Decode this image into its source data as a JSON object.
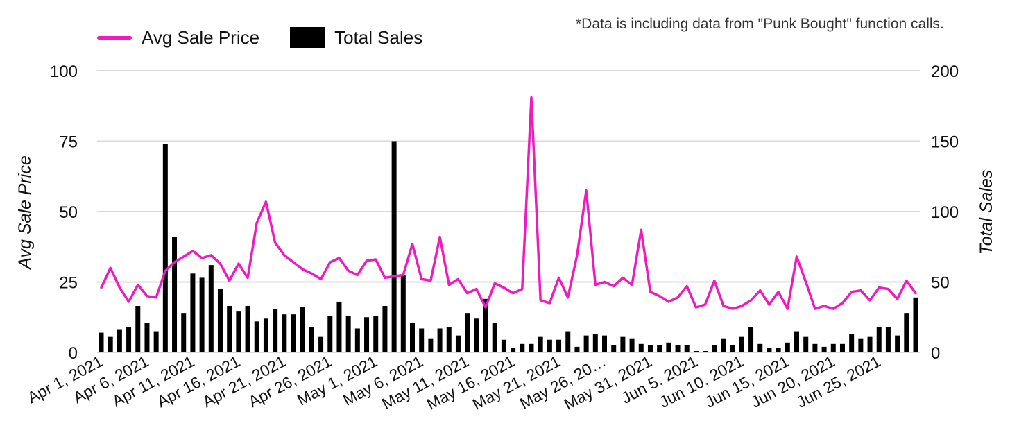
{
  "note": "*Data is including data from \"Punk Bought\" function calls.",
  "colors": {
    "price": "#f01bbe",
    "sales": "#000000",
    "grid": "#d9d9d9"
  },
  "chart_data": {
    "type": "bar+line",
    "title": "",
    "ylabel_left": "Avg Sale Price",
    "ylabel_right": "Total Sales",
    "ylim_left": [
      0,
      100
    ],
    "ylim_right": [
      0,
      200
    ],
    "yticks_left": [
      "0",
      "25",
      "50",
      "75",
      "100"
    ],
    "yticks_right": [
      "0",
      "50",
      "100",
      "150",
      "200"
    ],
    "grid": true,
    "legend_position": "top-left",
    "x_tick_labels": [
      "Apr 1, 2021",
      "Apr 6, 2021",
      "Apr 11, 2021",
      "Apr 16, 2021",
      "Apr 21, 2021",
      "Apr 26, 2021",
      "May 1, 2021",
      "May 6, 2021",
      "May 11, 2021",
      "May 16, 2021",
      "May 21, 2021",
      "May 26, 20…",
      "May 31, 2021",
      "Jun 5, 2021",
      "Jun 10, 2021",
      "Jun 15, 2021",
      "Jun 20, 2021",
      "Jun 25, 2021"
    ],
    "series": [
      {
        "name": "Avg Sale Price",
        "type": "line",
        "axis": "left",
        "values": [
          23,
          30,
          23,
          18,
          24,
          20,
          19.5,
          29,
          32,
          34,
          36,
          33.5,
          34.5,
          31.5,
          25.5,
          31.5,
          26.5,
          46,
          53.5,
          39,
          34.5,
          32,
          29.5,
          28,
          26,
          32,
          33.5,
          29,
          27.5,
          32.5,
          33,
          26.5,
          27,
          27.5,
          38.5,
          26,
          25.5,
          41,
          24,
          26,
          21,
          22.5,
          16,
          24.5,
          23,
          21,
          22.5,
          90.5,
          18.5,
          17.5,
          26.5,
          19.5,
          34.5,
          57.5,
          24,
          25,
          23.5,
          26.5,
          24,
          43.5,
          21.5,
          20,
          18,
          19.5,
          23.5,
          16,
          17,
          25.5,
          16.5,
          15.5,
          16.5,
          18.5,
          22,
          17,
          21.5,
          15.5,
          34,
          25,
          15.5,
          16.5,
          15.5,
          17.5,
          21.5,
          22,
          18.5,
          23,
          22.5,
          19,
          25.5,
          21
        ]
      },
      {
        "name": "Total Sales",
        "type": "bar",
        "axis": "right",
        "values": [
          14,
          11,
          16,
          18,
          33,
          21,
          15,
          148,
          82,
          28,
          56,
          53,
          62,
          45,
          33,
          29,
          33,
          22,
          24,
          31,
          27,
          27,
          32,
          18,
          11,
          26,
          36,
          26,
          17,
          25,
          26,
          33,
          150,
          55,
          21,
          17,
          10,
          17,
          18,
          12,
          28,
          24,
          38,
          21,
          9,
          3,
          6,
          6,
          11,
          9,
          9,
          15,
          4,
          12,
          13,
          12,
          5,
          11,
          10,
          6,
          5,
          5,
          7,
          5,
          5,
          1,
          1,
          5,
          10,
          5,
          11,
          18,
          6,
          3,
          3,
          7,
          15,
          11,
          6,
          4,
          6,
          6,
          13,
          10,
          11,
          18,
          18,
          12,
          28,
          39
        ]
      }
    ]
  }
}
